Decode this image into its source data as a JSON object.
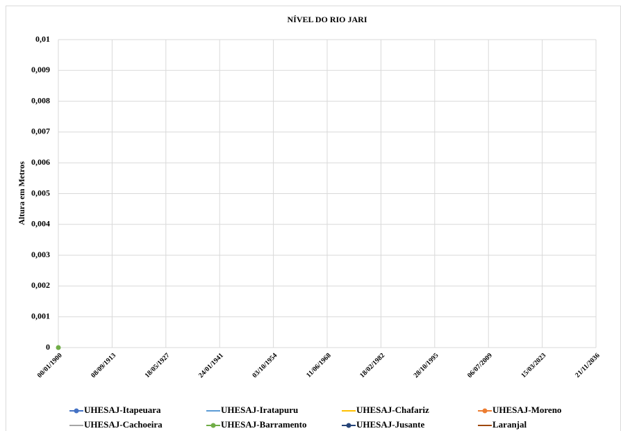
{
  "chart_data": {
    "type": "line",
    "title": "NÍVEL DO RIO JARI",
    "y_label": "Altura em Metros",
    "x": [
      0
    ],
    "xlim": [
      0,
      50000
    ],
    "xticks": [
      {
        "value": 0,
        "label": "00/01/1900"
      },
      {
        "value": 5000,
        "label": "08/09/1913"
      },
      {
        "value": 10000,
        "label": "18/05/1927"
      },
      {
        "value": 15000,
        "label": "24/01/1941"
      },
      {
        "value": 20000,
        "label": "03/10/1954"
      },
      {
        "value": 25000,
        "label": "11/06/1968"
      },
      {
        "value": 30000,
        "label": "18/02/1982"
      },
      {
        "value": 35000,
        "label": "28/10/1995"
      },
      {
        "value": 40000,
        "label": "06/07/2009"
      },
      {
        "value": 45000,
        "label": "15/03/2023"
      },
      {
        "value": 50000,
        "label": "21/11/2036"
      }
    ],
    "ylim": [
      0,
      0.01
    ],
    "yticks": [
      0,
      {
        "value": 0.001,
        "label": "0,001"
      },
      {
        "value": 0.002,
        "label": "0,002"
      },
      {
        "value": 0.003,
        "label": "0,003"
      },
      {
        "value": 0.004,
        "label": "0,004"
      },
      {
        "value": 0.005,
        "label": "0,005"
      },
      {
        "value": 0.006,
        "label": "0,006"
      },
      {
        "value": 0.007,
        "label": "0,007"
      },
      {
        "value": 0.008,
        "label": "0,008"
      },
      {
        "value": 0.009,
        "label": "0,009"
      },
      {
        "value": 0.01,
        "label": "0,01"
      }
    ],
    "grid": true,
    "legend": "bottom",
    "series": [
      {
        "name": "UHESAJ-Itapeuara",
        "color": "#4472c4",
        "marker": true,
        "values": [
          null
        ]
      },
      {
        "name": "UHESAJ-Iratapuru",
        "color": "#5b9bd5",
        "marker": false,
        "values": [
          null
        ]
      },
      {
        "name": "UHESAJ-Chafariz",
        "color": "#ffc000",
        "marker": false,
        "values": [
          null
        ]
      },
      {
        "name": "UHESAJ-Moreno",
        "color": "#ed7d31",
        "marker": true,
        "values": [
          null
        ]
      },
      {
        "name": "UHESAJ-Cachoeira",
        "color": "#a5a5a5",
        "marker": false,
        "values": [
          null
        ]
      },
      {
        "name": "UHESAJ-Barramento",
        "color": "#70ad47",
        "marker": true,
        "values": [
          0
        ]
      },
      {
        "name": "UHESAJ-Jusante",
        "color": "#264478",
        "marker": true,
        "values": [
          null
        ]
      },
      {
        "name": "Laranjal",
        "color": "#9e480e",
        "marker": false,
        "values": [
          null
        ]
      }
    ]
  }
}
